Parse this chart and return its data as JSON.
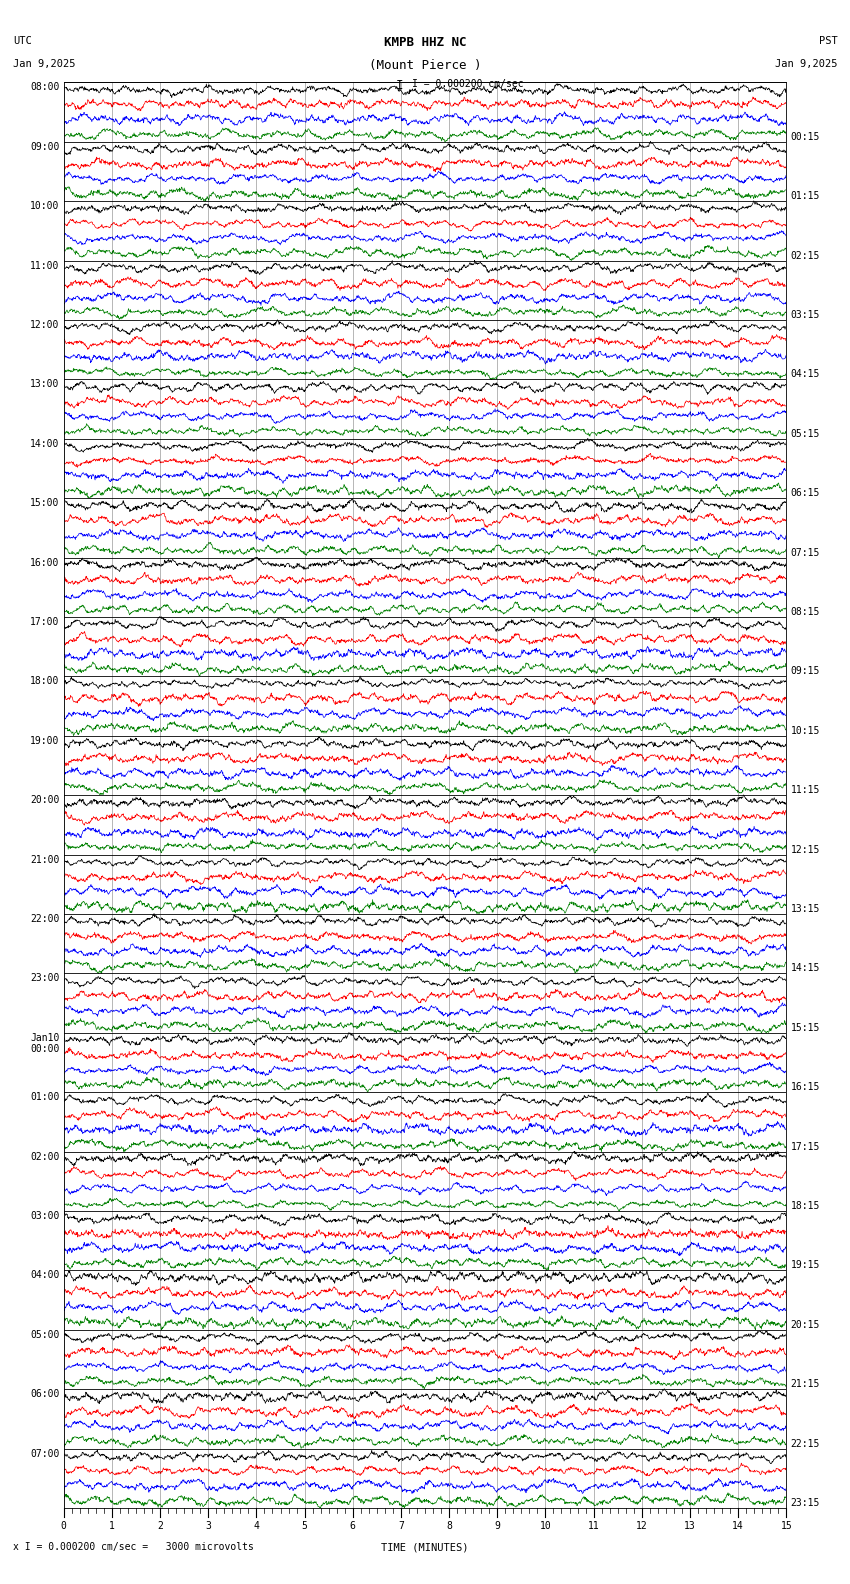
{
  "title_line1": "KMPB HHZ NC",
  "title_line2": "(Mount Pierce )",
  "scale_label": "I = 0.000200 cm/sec",
  "left_timezone": "UTC",
  "right_timezone": "PST",
  "left_date": "Jan 9,2025",
  "right_date": "Jan 9,2025",
  "bottom_label": "TIME (MINUTES)",
  "bottom_note": "x I = 0.000200 cm/sec =   3000 microvolts",
  "xlabel_ticks": [
    0,
    1,
    2,
    3,
    4,
    5,
    6,
    7,
    8,
    9,
    10,
    11,
    12,
    13,
    14,
    15
  ],
  "trace_colors": [
    "black",
    "red",
    "blue",
    "green"
  ],
  "left_labels": [
    "08:00",
    "09:00",
    "10:00",
    "11:00",
    "12:00",
    "13:00",
    "14:00",
    "15:00",
    "16:00",
    "17:00",
    "18:00",
    "19:00",
    "20:00",
    "21:00",
    "22:00",
    "23:00",
    "Jan10\n00:00",
    "01:00",
    "02:00",
    "03:00",
    "04:00",
    "05:00",
    "06:00",
    "07:00"
  ],
  "right_labels": [
    "00:15",
    "01:15",
    "02:15",
    "03:15",
    "04:15",
    "05:15",
    "06:15",
    "07:15",
    "08:15",
    "09:15",
    "10:15",
    "11:15",
    "12:15",
    "13:15",
    "14:15",
    "15:15",
    "16:15",
    "17:15",
    "18:15",
    "19:15",
    "20:15",
    "21:15",
    "22:15",
    "23:15"
  ],
  "n_rows": 24,
  "traces_per_row": 4,
  "samples_per_trace": 1800,
  "amplitude_scale": 0.52,
  "fig_width": 8.5,
  "fig_height": 15.84,
  "bg_color": "white",
  "plot_bg_color": "white",
  "font_size_title": 9,
  "font_size_labels": 7.5,
  "font_size_tick": 7,
  "font_family": "monospace"
}
